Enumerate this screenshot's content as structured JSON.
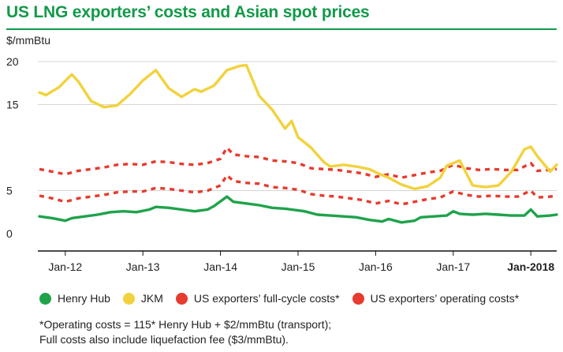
{
  "title": "US LNG exporters’ costs and Asian spot prices",
  "footnote": {
    "line1": "*Operating costs = 115* Henry Hub + $2/mmBtu (transport);",
    "line2": "Full costs also include liquefaction fee ($3/mmBtu)."
  },
  "colors": {
    "title": "#129a49",
    "henry": "#1ea34b",
    "jkm": "#f2d23c",
    "costs": "#e63b2e",
    "grid": "#d6d6d6",
    "axis": "#111111"
  },
  "chart_data": {
    "type": "line",
    "ylabel": "$/mmBtu",
    "ylim": [
      0,
      20
    ],
    "yticks": [
      0,
      5,
      15,
      20
    ],
    "ytick_labels": [
      "0",
      "5",
      "15",
      "20"
    ],
    "grid": "horizontal",
    "legend_position": "bottom",
    "xlim": [
      "2011-09",
      "2018-05"
    ],
    "xticks": [
      {
        "date": "2012-01",
        "label": "Jan-12",
        "bold": false
      },
      {
        "date": "2013-01",
        "label": "Jan-13",
        "bold": false
      },
      {
        "date": "2014-01",
        "label": "Jan-14",
        "bold": false
      },
      {
        "date": "2015-01",
        "label": "Jan-15",
        "bold": false
      },
      {
        "date": "2016-01",
        "label": "Jan-16",
        "bold": false
      },
      {
        "date": "2017-01",
        "label": "Jan-17",
        "bold": false
      },
      {
        "date": "2018-01",
        "label": "Jan-2018",
        "bold": true
      }
    ],
    "series": [
      {
        "name": "Henry Hub",
        "color": "#1ea34b",
        "style": "solid",
        "points": [
          [
            "2011-09",
            2.0
          ],
          [
            "2011-11",
            1.8
          ],
          [
            "2012-01",
            1.5
          ],
          [
            "2012-02",
            1.8
          ],
          [
            "2012-04",
            2.0
          ],
          [
            "2012-06",
            2.2
          ],
          [
            "2012-08",
            2.5
          ],
          [
            "2012-10",
            2.6
          ],
          [
            "2012-12",
            2.5
          ],
          [
            "2013-02",
            2.8
          ],
          [
            "2013-03",
            3.1
          ],
          [
            "2013-05",
            3.0
          ],
          [
            "2013-07",
            2.8
          ],
          [
            "2013-09",
            2.6
          ],
          [
            "2013-11",
            2.8
          ],
          [
            "2013-12",
            3.2
          ],
          [
            "2014-02",
            4.3
          ],
          [
            "2014-03",
            3.7
          ],
          [
            "2014-05",
            3.5
          ],
          [
            "2014-07",
            3.3
          ],
          [
            "2014-09",
            3.0
          ],
          [
            "2014-11",
            2.9
          ],
          [
            "2014-12",
            2.8
          ],
          [
            "2015-02",
            2.6
          ],
          [
            "2015-04",
            2.2
          ],
          [
            "2015-06",
            2.1
          ],
          [
            "2015-08",
            2.0
          ],
          [
            "2015-10",
            1.9
          ],
          [
            "2015-12",
            1.6
          ],
          [
            "2016-02",
            1.4
          ],
          [
            "2016-03",
            1.7
          ],
          [
            "2016-05",
            1.3
          ],
          [
            "2016-07",
            1.5
          ],
          [
            "2016-08",
            1.9
          ],
          [
            "2016-10",
            2.0
          ],
          [
            "2016-12",
            2.1
          ],
          [
            "2017-01",
            2.6
          ],
          [
            "2017-02",
            2.3
          ],
          [
            "2017-04",
            2.2
          ],
          [
            "2017-06",
            2.3
          ],
          [
            "2017-08",
            2.2
          ],
          [
            "2017-10",
            2.1
          ],
          [
            "2017-12",
            2.1
          ],
          [
            "2018-01",
            2.8
          ],
          [
            "2018-02",
            2.0
          ],
          [
            "2018-04",
            2.1
          ],
          [
            "2018-05",
            2.2
          ]
        ]
      },
      {
        "name": "JKM",
        "color": "#f2d23c",
        "style": "solid",
        "points": [
          [
            "2011-09",
            16.4
          ],
          [
            "2011-10",
            16.1
          ],
          [
            "2011-12",
            17.0
          ],
          [
            "2012-02",
            18.5
          ],
          [
            "2012-03",
            17.7
          ],
          [
            "2012-05",
            15.4
          ],
          [
            "2012-07",
            14.7
          ],
          [
            "2012-09",
            14.9
          ],
          [
            "2012-11",
            16.2
          ],
          [
            "2013-01",
            17.8
          ],
          [
            "2013-03",
            19.0
          ],
          [
            "2013-05",
            16.9
          ],
          [
            "2013-07",
            15.9
          ],
          [
            "2013-09",
            16.8
          ],
          [
            "2013-10",
            16.5
          ],
          [
            "2013-12",
            17.2
          ],
          [
            "2014-02",
            19.0
          ],
          [
            "2014-04",
            19.5
          ],
          [
            "2014-05",
            19.6
          ],
          [
            "2014-07",
            16.0
          ],
          [
            "2014-09",
            14.4
          ],
          [
            "2014-11",
            12.2
          ],
          [
            "2014-12",
            13.1
          ],
          [
            "2015-01",
            11.2
          ],
          [
            "2015-03",
            10.0
          ],
          [
            "2015-05",
            8.3
          ],
          [
            "2015-06",
            7.8
          ],
          [
            "2015-08",
            8.0
          ],
          [
            "2015-10",
            7.8
          ],
          [
            "2015-12",
            7.5
          ],
          [
            "2016-02",
            6.8
          ],
          [
            "2016-03",
            6.5
          ],
          [
            "2016-05",
            5.7
          ],
          [
            "2016-07",
            5.2
          ],
          [
            "2016-09",
            5.5
          ],
          [
            "2016-11",
            6.5
          ],
          [
            "2016-12",
            7.9
          ],
          [
            "2017-02",
            8.5
          ],
          [
            "2017-04",
            5.6
          ],
          [
            "2017-06",
            5.4
          ],
          [
            "2017-08",
            5.6
          ],
          [
            "2017-10",
            7.2
          ],
          [
            "2017-12",
            9.8
          ],
          [
            "2018-01",
            10.1
          ],
          [
            "2018-02",
            9.0
          ],
          [
            "2018-04",
            7.2
          ],
          [
            "2018-05",
            8.0
          ]
        ]
      },
      {
        "name": "US exporters’ full-cycle costs*",
        "color": "#e63b2e",
        "style": "dashed",
        "points": [
          [
            "2011-09",
            7.5
          ],
          [
            "2011-11",
            7.2
          ],
          [
            "2012-01",
            6.9
          ],
          [
            "2012-03",
            7.3
          ],
          [
            "2012-05",
            7.5
          ],
          [
            "2012-07",
            7.7
          ],
          [
            "2012-09",
            8.0
          ],
          [
            "2012-11",
            8.1
          ],
          [
            "2013-01",
            8.0
          ],
          [
            "2013-03",
            8.4
          ],
          [
            "2013-05",
            8.3
          ],
          [
            "2013-07",
            8.1
          ],
          [
            "2013-09",
            8.0
          ],
          [
            "2013-11",
            8.2
          ],
          [
            "2014-01",
            8.7
          ],
          [
            "2014-02",
            10.0
          ],
          [
            "2014-03",
            9.2
          ],
          [
            "2014-05",
            9.0
          ],
          [
            "2014-07",
            8.9
          ],
          [
            "2014-09",
            8.5
          ],
          [
            "2014-11",
            8.4
          ],
          [
            "2015-01",
            8.2
          ],
          [
            "2015-03",
            7.6
          ],
          [
            "2015-05",
            7.5
          ],
          [
            "2015-07",
            7.4
          ],
          [
            "2015-09",
            7.2
          ],
          [
            "2015-11",
            7.0
          ],
          [
            "2016-01",
            6.6
          ],
          [
            "2016-03",
            6.9
          ],
          [
            "2016-05",
            6.5
          ],
          [
            "2016-07",
            6.8
          ],
          [
            "2016-09",
            7.1
          ],
          [
            "2016-11",
            7.3
          ],
          [
            "2017-01",
            8.0
          ],
          [
            "2017-03",
            7.6
          ],
          [
            "2017-05",
            7.4
          ],
          [
            "2017-07",
            7.5
          ],
          [
            "2017-09",
            7.4
          ],
          [
            "2017-11",
            7.4
          ],
          [
            "2018-01",
            8.2
          ],
          [
            "2018-02",
            7.3
          ],
          [
            "2018-04",
            7.4
          ],
          [
            "2018-05",
            7.5
          ]
        ]
      },
      {
        "name": "US exporters’ operating costs*",
        "color": "#e63b2e",
        "style": "dashed",
        "points": [
          [
            "2011-09",
            4.4
          ],
          [
            "2011-11",
            4.1
          ],
          [
            "2012-01",
            3.7
          ],
          [
            "2012-03",
            4.1
          ],
          [
            "2012-05",
            4.3
          ],
          [
            "2012-07",
            4.5
          ],
          [
            "2012-09",
            4.8
          ],
          [
            "2012-11",
            4.9
          ],
          [
            "2013-01",
            4.9
          ],
          [
            "2013-03",
            5.3
          ],
          [
            "2013-05",
            5.2
          ],
          [
            "2013-07",
            5.0
          ],
          [
            "2013-09",
            4.8
          ],
          [
            "2013-11",
            5.0
          ],
          [
            "2014-01",
            5.6
          ],
          [
            "2014-02",
            6.8
          ],
          [
            "2014-03",
            6.1
          ],
          [
            "2014-05",
            5.9
          ],
          [
            "2014-07",
            5.8
          ],
          [
            "2014-09",
            5.4
          ],
          [
            "2014-11",
            5.3
          ],
          [
            "2015-01",
            5.1
          ],
          [
            "2015-03",
            4.6
          ],
          [
            "2015-05",
            4.4
          ],
          [
            "2015-07",
            4.3
          ],
          [
            "2015-09",
            4.1
          ],
          [
            "2015-11",
            3.9
          ],
          [
            "2016-01",
            3.5
          ],
          [
            "2016-03",
            3.8
          ],
          [
            "2016-05",
            3.4
          ],
          [
            "2016-07",
            3.7
          ],
          [
            "2016-09",
            4.0
          ],
          [
            "2016-11",
            4.2
          ],
          [
            "2017-01",
            4.9
          ],
          [
            "2017-03",
            4.5
          ],
          [
            "2017-05",
            4.3
          ],
          [
            "2017-07",
            4.4
          ],
          [
            "2017-09",
            4.3
          ],
          [
            "2017-11",
            4.3
          ],
          [
            "2018-01",
            5.0
          ],
          [
            "2018-02",
            4.2
          ],
          [
            "2018-04",
            4.3
          ],
          [
            "2018-05",
            4.4
          ]
        ]
      }
    ]
  }
}
